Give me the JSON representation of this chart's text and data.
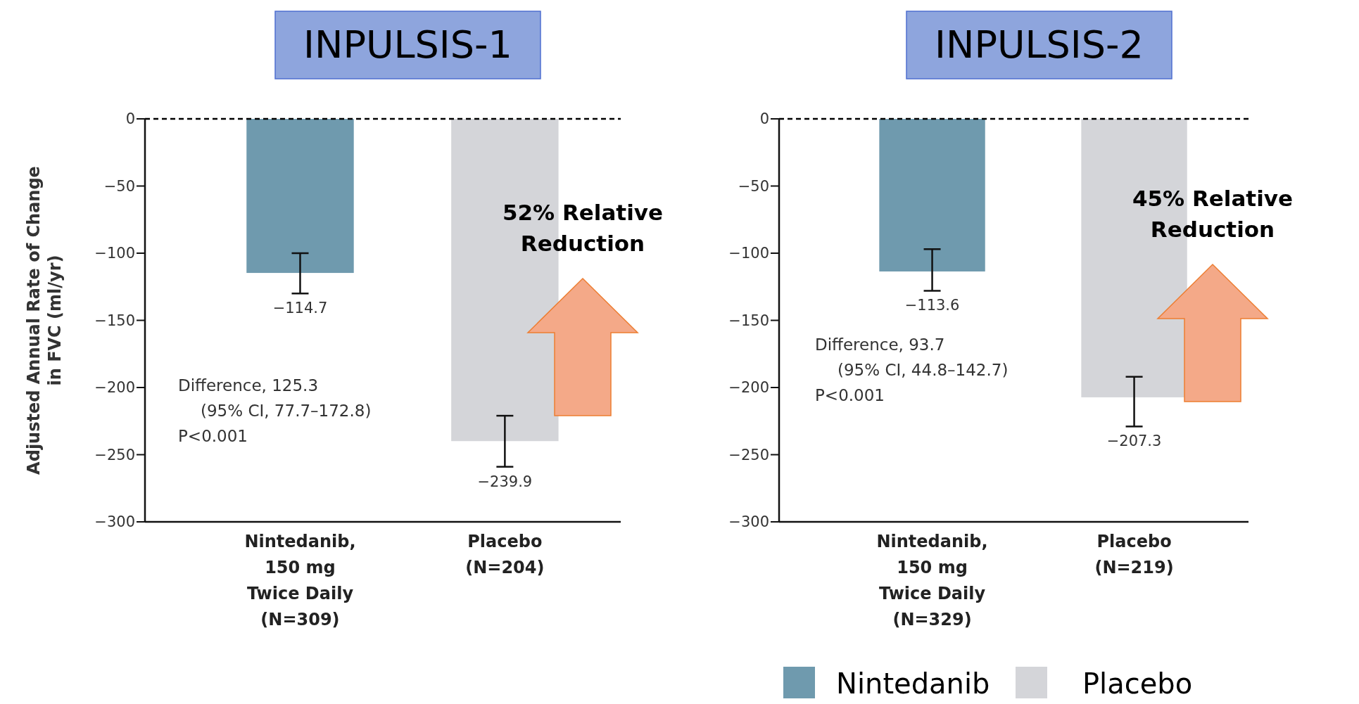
{
  "chart_data": [
    {
      "type": "bar",
      "title": "INPULSIS-1",
      "ylabel": "Adjusted Annual Rate of Change\nin FVC (ml/yr)",
      "categories": [
        "Nintedanib,\n150 mg\nTwice Daily\n(N=309)",
        "Placebo\n(N=204)"
      ],
      "series": [
        {
          "color": "#6f9aae",
          "values": [
            -114.7,
            null
          ],
          "errors": [
            [
              -130,
              -100
            ],
            null
          ]
        },
        {
          "color": "#d4d5d9",
          "values": [
            null,
            -239.9
          ],
          "errors": [
            null,
            [
              -259,
              -221
            ]
          ]
        }
      ],
      "ylim": [
        -300,
        0
      ],
      "yticks": [
        -300,
        -250,
        -200,
        -150,
        -100,
        -50,
        0
      ],
      "data_labels": true,
      "legend": false,
      "ref_lines": [
        {
          "axis": "y",
          "value": 0,
          "line_style": "dashed",
          "color": "#000000"
        }
      ],
      "annotations": [
        "52% Relative Reduction",
        "Difference, 125.3",
        "(95% CI, 77.7–172.8)",
        "P<0.001"
      ]
    },
    {
      "type": "bar",
      "title": "INPULSIS-2",
      "categories": [
        "Nintedanib,\n150 mg\nTwice Daily\n(N=329)",
        "Placebo\n(N=219)"
      ],
      "series": [
        {
          "name": "Nintedanib",
          "color": "#6f9aae",
          "values": [
            -113.6,
            null
          ],
          "errors": [
            [
              -128,
              -97
            ],
            null
          ]
        },
        {
          "name": "Placebo",
          "color": "#d4d5d9",
          "values": [
            null,
            -207.3
          ],
          "errors": [
            null,
            [
              -229,
              -192
            ]
          ]
        }
      ],
      "ylim": [
        -300,
        0
      ],
      "yticks": [
        -300,
        -250,
        -200,
        -150,
        -100,
        -50,
        0
      ],
      "data_labels": true,
      "legend": "bottom",
      "ref_lines": [
        {
          "axis": "y",
          "value": 0,
          "line_style": "dashed",
          "color": "#000000"
        }
      ],
      "annotations": [
        "45% Relative Reduction",
        "Difference, 93.7",
        "(95% CI, 44.8–142.7)",
        "P<0.001"
      ]
    }
  ]
}
